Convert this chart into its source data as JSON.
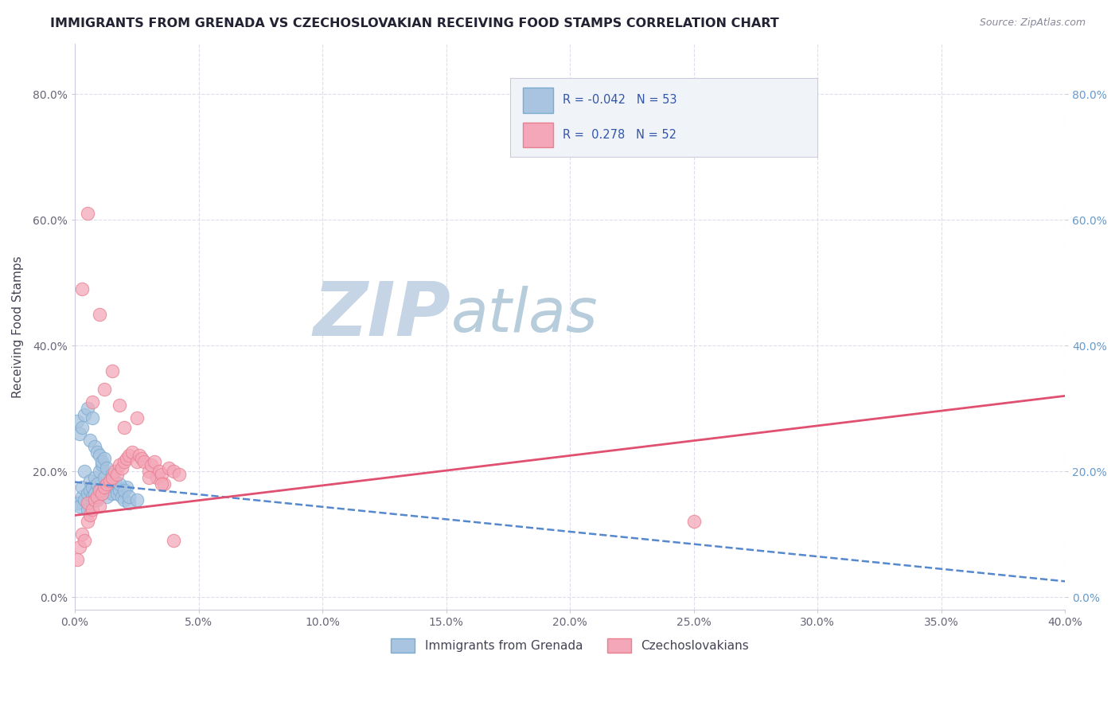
{
  "title": "IMMIGRANTS FROM GRENADA VS CZECHOSLOVAKIAN RECEIVING FOOD STAMPS CORRELATION CHART",
  "source_text": "Source: ZipAtlas.com",
  "ylabel": "Receiving Food Stamps",
  "xlim": [
    0.0,
    0.4
  ],
  "ylim": [
    -0.02,
    0.88
  ],
  "xticks": [
    0.0,
    0.05,
    0.1,
    0.15,
    0.2,
    0.25,
    0.3,
    0.35,
    0.4
  ],
  "yticks": [
    0.0,
    0.2,
    0.4,
    0.6,
    0.8
  ],
  "blue_color": "#a8c4e0",
  "pink_color": "#f4a7b9",
  "blue_edge_color": "#7aabd0",
  "pink_edge_color": "#e88090",
  "blue_line_color": "#5588cc",
  "pink_line_color": "#e05070",
  "R_blue": -0.042,
  "N_blue": 53,
  "R_pink": 0.278,
  "N_pink": 52,
  "watermark_zip": "ZIP",
  "watermark_atlas": "atlas",
  "watermark_color_zip": "#c5d5e5",
  "watermark_color_atlas": "#b0c8d8",
  "title_color": "#222233",
  "axis_label_color": "#444455",
  "right_tick_color": "#6699cc",
  "legend_text_color": "#3355aa",
  "grid_color": "#ddddee",
  "background_color": "#ffffff",
  "blue_scatter_x": [
    0.001,
    0.002,
    0.003,
    0.003,
    0.004,
    0.004,
    0.005,
    0.005,
    0.006,
    0.006,
    0.007,
    0.007,
    0.008,
    0.008,
    0.009,
    0.009,
    0.01,
    0.01,
    0.011,
    0.011,
    0.012,
    0.012,
    0.013,
    0.013,
    0.014,
    0.015,
    0.015,
    0.016,
    0.017,
    0.018,
    0.019,
    0.02,
    0.021,
    0.022,
    0.001,
    0.002,
    0.003,
    0.004,
    0.005,
    0.006,
    0.007,
    0.008,
    0.009,
    0.01,
    0.011,
    0.012,
    0.013,
    0.015,
    0.016,
    0.018,
    0.02,
    0.022,
    0.025
  ],
  "blue_scatter_y": [
    0.15,
    0.145,
    0.16,
    0.175,
    0.155,
    0.2,
    0.165,
    0.14,
    0.17,
    0.185,
    0.16,
    0.175,
    0.165,
    0.19,
    0.155,
    0.18,
    0.17,
    0.2,
    0.165,
    0.21,
    0.175,
    0.19,
    0.16,
    0.18,
    0.17,
    0.165,
    0.185,
    0.175,
    0.165,
    0.17,
    0.16,
    0.155,
    0.175,
    0.15,
    0.28,
    0.26,
    0.27,
    0.29,
    0.3,
    0.25,
    0.285,
    0.24,
    0.23,
    0.225,
    0.215,
    0.22,
    0.205,
    0.195,
    0.185,
    0.18,
    0.17,
    0.16,
    0.155
  ],
  "pink_scatter_x": [
    0.001,
    0.002,
    0.003,
    0.004,
    0.005,
    0.005,
    0.006,
    0.007,
    0.008,
    0.009,
    0.01,
    0.01,
    0.011,
    0.012,
    0.013,
    0.014,
    0.015,
    0.016,
    0.017,
    0.018,
    0.019,
    0.02,
    0.021,
    0.022,
    0.023,
    0.025,
    0.026,
    0.027,
    0.028,
    0.03,
    0.031,
    0.032,
    0.033,
    0.034,
    0.035,
    0.036,
    0.038,
    0.04,
    0.042,
    0.003,
    0.007,
    0.012,
    0.018,
    0.025,
    0.03,
    0.005,
    0.01,
    0.015,
    0.02,
    0.035,
    0.04,
    0.25
  ],
  "pink_scatter_y": [
    0.06,
    0.08,
    0.1,
    0.09,
    0.12,
    0.15,
    0.13,
    0.14,
    0.155,
    0.16,
    0.145,
    0.17,
    0.165,
    0.175,
    0.18,
    0.185,
    0.19,
    0.2,
    0.195,
    0.21,
    0.205,
    0.215,
    0.22,
    0.225,
    0.23,
    0.215,
    0.225,
    0.22,
    0.215,
    0.2,
    0.21,
    0.215,
    0.19,
    0.2,
    0.195,
    0.18,
    0.205,
    0.2,
    0.195,
    0.49,
    0.31,
    0.33,
    0.305,
    0.285,
    0.19,
    0.61,
    0.45,
    0.36,
    0.27,
    0.18,
    0.09,
    0.12
  ],
  "blue_trend_x": [
    0.0,
    0.4
  ],
  "blue_trend_y": [
    0.183,
    0.025
  ],
  "pink_trend_x": [
    0.0,
    0.4
  ],
  "pink_trend_y": [
    0.13,
    0.32
  ]
}
